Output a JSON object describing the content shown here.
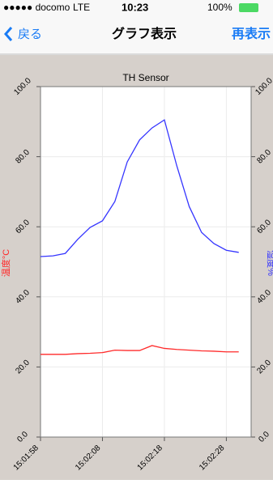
{
  "status_bar": {
    "carrier": "●●●●● docomo",
    "network": "LTE",
    "time": "10:23",
    "battery": "100%"
  },
  "nav_bar": {
    "back": "戻る",
    "title": "グラフ表示",
    "action": "再表示"
  },
  "chart_data": {
    "type": "line",
    "title": "TH Sensor",
    "y_label": "温度°C",
    "y2_label": "湿度%",
    "x": [
      "15:01:58",
      "15:02:00",
      "15:02:02",
      "15:02:04",
      "15:02:06",
      "15:02:08",
      "15:02:10",
      "15:02:12",
      "15:02:14",
      "15:02:16",
      "15:02:18",
      "15:02:20",
      "15:02:22",
      "15:02:24",
      "15:02:26",
      "15:02:28",
      "15:02:30"
    ],
    "xlim": [
      "15:01:58",
      "15:02:32"
    ],
    "xticks": [
      "15:01:58",
      "15:02:08",
      "15:02:18",
      "15:02:28"
    ],
    "ylim": [
      0,
      100
    ],
    "yticks": [
      {
        "value": 0,
        "label": "0.0"
      },
      {
        "value": 20,
        "label": "20.0"
      },
      {
        "value": 40,
        "label": "40.0"
      },
      {
        "value": 60,
        "label": "60.0"
      },
      {
        "value": 80,
        "label": "80.0"
      },
      {
        "value": 100,
        "label": "100.0"
      }
    ],
    "y2lim": [
      0,
      100
    ],
    "y2ticks": [
      {
        "value": 0,
        "label": "0.0"
      },
      {
        "value": 20,
        "label": "20.0"
      },
      {
        "value": 40,
        "label": "40.0"
      },
      {
        "value": 60,
        "label": "60.0"
      },
      {
        "value": 80,
        "label": "80.0"
      },
      {
        "value": 100,
        "label": "100.0"
      }
    ],
    "grid": true,
    "series": [
      {
        "color": "#ff2a2a",
        "values": [
          23.6,
          23.6,
          23.6,
          23.8,
          23.9,
          24.1,
          24.8,
          24.7,
          24.7,
          26.1,
          25.3,
          25.0,
          24.8,
          24.6,
          24.5,
          24.3,
          24.3
        ]
      },
      {
        "color": "#3535ff",
        "axis": "y2",
        "values": [
          51.5,
          51.7,
          52.4,
          56.4,
          59.8,
          61.7,
          67.2,
          78.5,
          84.8,
          88.2,
          90.5,
          77.4,
          65.8,
          58.4,
          55.2,
          53.3,
          52.7
        ]
      }
    ]
  }
}
